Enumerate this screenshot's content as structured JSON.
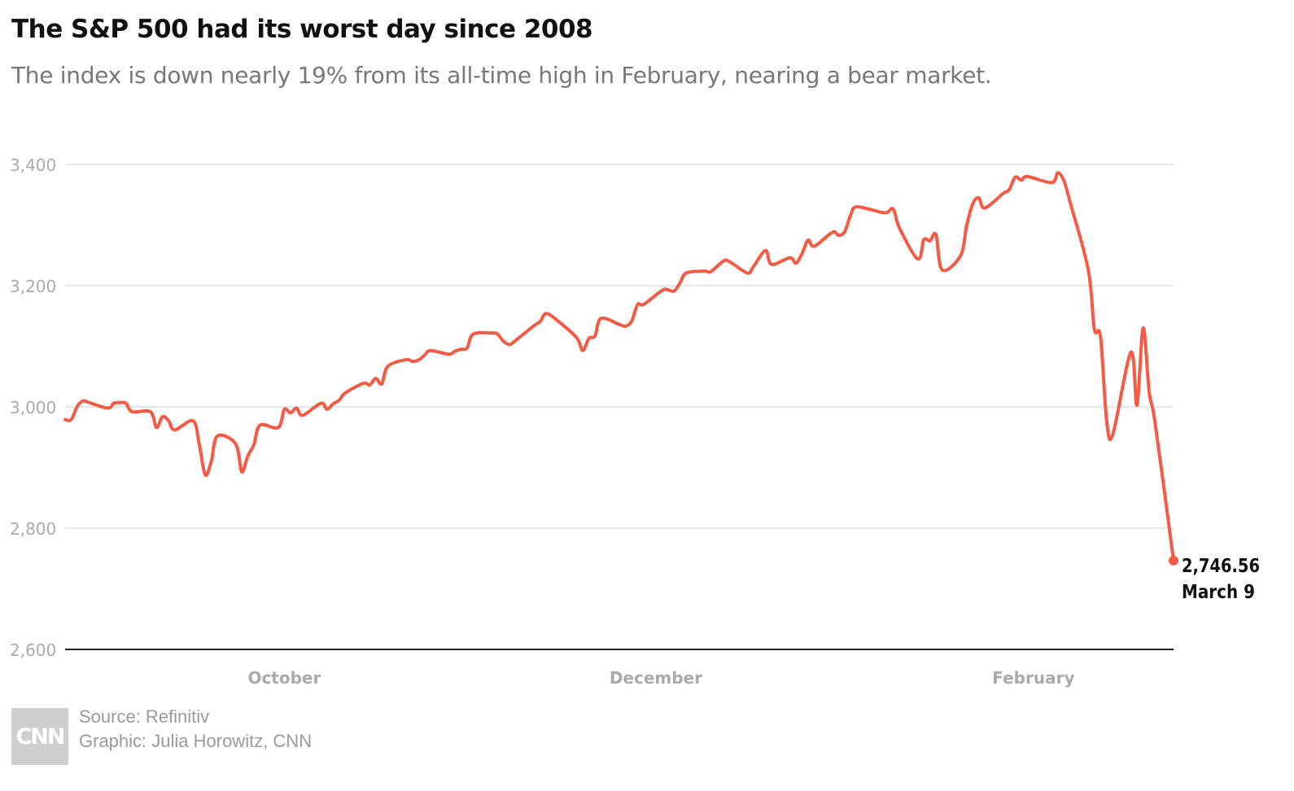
{
  "header": {
    "title": "The S&P 500 had its worst day since 2008",
    "subtitle": "The index is down nearly 19% from its all-time high in February, nearing a bear market."
  },
  "footer": {
    "logo_text": "CNN",
    "source": "Source: Refinitiv",
    "credit": "Graphic: Julia Horowitz, CNN"
  },
  "colors": {
    "line": "#f45a44",
    "grid": "#dddddd",
    "axis": "#222222",
    "tick_text": "#aaaaaa",
    "label_text": "#111111"
  },
  "chart_data": {
    "type": "line",
    "title": "The S&P 500 had its worst day since 2008",
    "subtitle": "The index is down nearly 19% from its all-time high in February, nearing a bear market.",
    "xlabel": "",
    "ylabel": "",
    "ylim": [
      2600,
      3450
    ],
    "x_range": [
      "2019-09-09",
      "2020-03-09"
    ],
    "yticks": [
      2600,
      2800,
      3000,
      3200,
      3400
    ],
    "ytick_labels": [
      "2,600",
      "2,800",
      "3,000",
      "3,200",
      "3,400"
    ],
    "xticks": [
      {
        "date": "2019-10-15",
        "label": "October"
      },
      {
        "date": "2019-12-15",
        "label": "December"
      },
      {
        "date": "2020-02-15",
        "label": "February"
      }
    ],
    "grid": true,
    "legend": "none",
    "series": [
      {
        "points": [
          [
            "2019-09-09",
            2979
          ],
          [
            "2019-09-10",
            2979
          ],
          [
            "2019-09-11",
            3001
          ],
          [
            "2019-09-12",
            3010
          ],
          [
            "2019-09-13",
            3007
          ],
          [
            "2019-09-16",
            2998
          ],
          [
            "2019-09-17",
            3006
          ],
          [
            "2019-09-18",
            3007
          ],
          [
            "2019-09-19",
            3006
          ],
          [
            "2019-09-20",
            2992
          ],
          [
            "2019-09-23",
            2992
          ],
          [
            "2019-09-24",
            2966
          ],
          [
            "2019-09-25",
            2984
          ],
          [
            "2019-09-26",
            2977
          ],
          [
            "2019-09-27",
            2962
          ],
          [
            "2019-09-30",
            2977
          ],
          [
            "2019-10-01",
            2940
          ],
          [
            "2019-10-02",
            2888
          ],
          [
            "2019-10-03",
            2910
          ],
          [
            "2019-10-04",
            2952
          ],
          [
            "2019-10-07",
            2939
          ],
          [
            "2019-10-08",
            2893
          ],
          [
            "2019-10-09",
            2919
          ],
          [
            "2019-10-10",
            2938
          ],
          [
            "2019-10-11",
            2970
          ],
          [
            "2019-10-14",
            2966
          ],
          [
            "2019-10-15",
            2996
          ],
          [
            "2019-10-16",
            2990
          ],
          [
            "2019-10-17",
            2998
          ],
          [
            "2019-10-18",
            2986
          ],
          [
            "2019-10-21",
            3006
          ],
          [
            "2019-10-22",
            2996
          ],
          [
            "2019-10-23",
            3005
          ],
          [
            "2019-10-24",
            3011
          ],
          [
            "2019-10-25",
            3023
          ],
          [
            "2019-10-28",
            3039
          ],
          [
            "2019-10-29",
            3036
          ],
          [
            "2019-10-30",
            3047
          ],
          [
            "2019-10-31",
            3038
          ],
          [
            "2019-11-01",
            3067
          ],
          [
            "2019-11-04",
            3078
          ],
          [
            "2019-11-05",
            3075
          ],
          [
            "2019-11-06",
            3077
          ],
          [
            "2019-11-07",
            3085
          ],
          [
            "2019-11-08",
            3093
          ],
          [
            "2019-11-11",
            3087
          ],
          [
            "2019-11-12",
            3092
          ],
          [
            "2019-11-13",
            3095
          ],
          [
            "2019-11-14",
            3097
          ],
          [
            "2019-11-15",
            3120
          ],
          [
            "2019-11-18",
            3122
          ],
          [
            "2019-11-19",
            3120
          ],
          [
            "2019-11-20",
            3108
          ],
          [
            "2019-11-21",
            3103
          ],
          [
            "2019-11-22",
            3110
          ],
          [
            "2019-11-25",
            3134
          ],
          [
            "2019-11-26",
            3141
          ],
          [
            "2019-11-27",
            3154
          ],
          [
            "2019-11-29",
            3141
          ],
          [
            "2019-12-02",
            3114
          ],
          [
            "2019-12-03",
            3093
          ],
          [
            "2019-12-04",
            3113
          ],
          [
            "2019-12-05",
            3117
          ],
          [
            "2019-12-06",
            3146
          ],
          [
            "2019-12-09",
            3136
          ],
          [
            "2019-12-10",
            3133
          ],
          [
            "2019-12-11",
            3141
          ],
          [
            "2019-12-12",
            3169
          ],
          [
            "2019-12-13",
            3169
          ],
          [
            "2019-12-16",
            3192
          ],
          [
            "2019-12-17",
            3193
          ],
          [
            "2019-12-18",
            3191
          ],
          [
            "2019-12-19",
            3205
          ],
          [
            "2019-12-20",
            3221
          ],
          [
            "2019-12-23",
            3224
          ],
          [
            "2019-12-24",
            3223
          ],
          [
            "2019-12-26",
            3240
          ],
          [
            "2019-12-27",
            3240
          ],
          [
            "2019-12-30",
            3221
          ],
          [
            "2019-12-31",
            3231
          ],
          [
            "2020-01-02",
            3258
          ],
          [
            "2020-01-03",
            3235
          ],
          [
            "2020-01-06",
            3246
          ],
          [
            "2020-01-07",
            3237
          ],
          [
            "2020-01-08",
            3253
          ],
          [
            "2020-01-09",
            3275
          ],
          [
            "2020-01-10",
            3265
          ],
          [
            "2020-01-13",
            3288
          ],
          [
            "2020-01-14",
            3283
          ],
          [
            "2020-01-15",
            3289
          ],
          [
            "2020-01-16",
            3317
          ],
          [
            "2020-01-17",
            3330
          ],
          [
            "2020-01-21",
            3321
          ],
          [
            "2020-01-22",
            3321
          ],
          [
            "2020-01-23",
            3326
          ],
          [
            "2020-01-24",
            3295
          ],
          [
            "2020-01-27",
            3244
          ],
          [
            "2020-01-28",
            3276
          ],
          [
            "2020-01-29",
            3274
          ],
          [
            "2020-01-30",
            3284
          ],
          [
            "2020-01-31",
            3226
          ],
          [
            "2020-02-03",
            3249
          ],
          [
            "2020-02-04",
            3298
          ],
          [
            "2020-02-05",
            3334
          ],
          [
            "2020-02-06",
            3345
          ],
          [
            "2020-02-07",
            3328
          ],
          [
            "2020-02-10",
            3352
          ],
          [
            "2020-02-11",
            3358
          ],
          [
            "2020-02-12",
            3379
          ],
          [
            "2020-02-13",
            3374
          ],
          [
            "2020-02-14",
            3380
          ],
          [
            "2020-02-18",
            3370
          ],
          [
            "2020-02-19",
            3386
          ],
          [
            "2020-02-20",
            3373
          ],
          [
            "2020-02-21",
            3338
          ],
          [
            "2020-02-24",
            3226
          ],
          [
            "2020-02-25",
            3128
          ],
          [
            "2020-02-26",
            3116
          ],
          [
            "2020-02-27",
            2979
          ],
          [
            "2020-02-28",
            2954
          ],
          [
            "2020-03-02",
            3090
          ],
          [
            "2020-03-03",
            3003
          ],
          [
            "2020-03-04",
            3130
          ],
          [
            "2020-03-05",
            3024
          ],
          [
            "2020-03-06",
            2972
          ],
          [
            "2020-03-09",
            2746.56
          ]
        ]
      }
    ],
    "annotations": [
      {
        "date": "2020-03-09",
        "value": 2746.56,
        "value_label": "2,746.56",
        "date_label": "March 9"
      }
    ]
  }
}
